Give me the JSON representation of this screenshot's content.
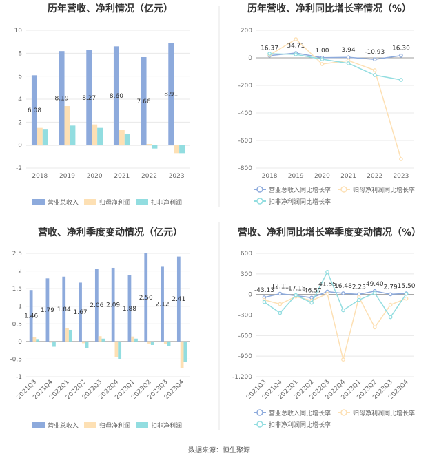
{
  "colors": {
    "revenue": "#8daadc",
    "net_profit": "#fde0b4",
    "deducted": "#92dde0",
    "grid": "#e8e8e8",
    "divider": "#e6e6e6"
  },
  "legend_bars": [
    "营业总收入",
    "归母净利润",
    "扣非净利润"
  ],
  "legend_lines": [
    "营业总收入同比增长率",
    "归母净利润同比增长率",
    "扣非净利润同比增长率"
  ],
  "source": "数据来源：恒生聚源",
  "chart_data": [
    {
      "type": "bar",
      "title": "历年营收、净利情况（亿元）",
      "categories": [
        "2018",
        "2019",
        "2020",
        "2021",
        "2022",
        "2023"
      ],
      "ylim": [
        -2,
        10
      ],
      "yticks": [
        "10",
        "8",
        "6",
        "4",
        "2",
        "0",
        "-2"
      ],
      "series": [
        {
          "name": "营业总收入",
          "values": [
            6.08,
            8.19,
            8.27,
            8.6,
            7.66,
            8.91
          ]
        },
        {
          "name": "归母净利润",
          "values": [
            1.5,
            3.4,
            1.8,
            1.3,
            0.1,
            -0.7
          ]
        },
        {
          "name": "扣非净利润",
          "values": [
            1.35,
            1.7,
            1.5,
            0.95,
            -0.3,
            -0.7
          ]
        }
      ],
      "labels": [
        "6.08",
        "8.19",
        "8.27",
        "8.60",
        "7.66",
        "8.91"
      ]
    },
    {
      "type": "line",
      "title": "历年营收、净利同比增长率情况（%）",
      "categories": [
        "2018",
        "2019",
        "2020",
        "2021",
        "2022",
        "2023"
      ],
      "ylim": [
        -800,
        200
      ],
      "yticks": [
        "200",
        "0",
        "-200",
        "-400",
        "-600",
        "-800"
      ],
      "series": [
        {
          "name": "营业总收入同比增长率",
          "values": [
            16.37,
            34.71,
            1.0,
            3.94,
            -10.93,
            16.3
          ]
        },
        {
          "name": "归母净利润同比增长率",
          "values": [
            20,
            135,
            -45,
            -20,
            -90,
            -735
          ]
        },
        {
          "name": "扣非净利润同比增长率",
          "values": [
            30,
            25,
            -10,
            -40,
            -125,
            -160
          ]
        }
      ],
      "labels": [
        "16.37",
        "34.71",
        "1.00",
        "3.94",
        "-10.93",
        "16.30"
      ]
    },
    {
      "type": "bar",
      "title": "营收、净利季度变动情况（亿元）",
      "categories": [
        "2021Q3",
        "2021Q4",
        "2022Q1",
        "2022Q2",
        "2022Q3",
        "2022Q4",
        "2023Q1",
        "2023Q2",
        "2023Q3",
        "2023Q4"
      ],
      "ylim": [
        -1,
        2.5
      ],
      "yticks": [
        "2.5",
        "2",
        "1.5",
        "1",
        "0.5",
        "0",
        "-0.5",
        "-1"
      ],
      "series": [
        {
          "name": "营业总收入",
          "values": [
            1.46,
            1.79,
            1.84,
            1.67,
            2.06,
            2.09,
            1.88,
            2.5,
            2.12,
            2.41
          ]
        },
        {
          "name": "归母净利润",
          "values": [
            0.12,
            -0.03,
            0.38,
            -0.05,
            0.15,
            -0.45,
            0.14,
            -0.06,
            -0.08,
            -0.75
          ]
        },
        {
          "name": "扣非净利润",
          "values": [
            0.05,
            -0.15,
            0.33,
            -0.18,
            0.08,
            -0.5,
            0.08,
            -0.1,
            -0.12,
            -0.57
          ]
        }
      ],
      "labels": [
        "1.46",
        "1.79",
        "1.84",
        "1.67",
        "2.06",
        "2.09",
        "1.88",
        "2.50",
        "2.12",
        "2.41"
      ]
    },
    {
      "type": "line",
      "title": "营收、净利同比增长率季度变动情况（%）",
      "categories": [
        "2021Q3",
        "2021Q4",
        "2022Q1",
        "2022Q2",
        "2022Q3",
        "2022Q4",
        "2023Q1",
        "2023Q2",
        "2023Q3",
        "2023Q4"
      ],
      "ylim": [
        -1200,
        600
      ],
      "yticks": [
        "600",
        "300",
        "0",
        "-300",
        "-600",
        "-900",
        "-1,200"
      ],
      "series": [
        {
          "name": "营业总收入同比增长率",
          "values": [
            -43.13,
            12.11,
            -17.18,
            -46.57,
            41.55,
            16.48,
            2.23,
            49.4,
            2.79,
            15.5
          ]
        },
        {
          "name": "归母净利润同比增长率",
          "values": [
            -80,
            -140,
            -30,
            -90,
            10,
            -950,
            -40,
            -480,
            -150,
            -60
          ]
        },
        {
          "name": "扣非净利润同比增长率",
          "values": [
            -110,
            -270,
            -10,
            -120,
            330,
            -230,
            -80,
            20,
            -330,
            10
          ]
        }
      ],
      "labels": [
        "-43.13",
        "12.11",
        "-17.18",
        "-46.57",
        "41.55",
        "16.48",
        "2.23",
        "49.40",
        "2.79",
        "15.50"
      ]
    }
  ]
}
